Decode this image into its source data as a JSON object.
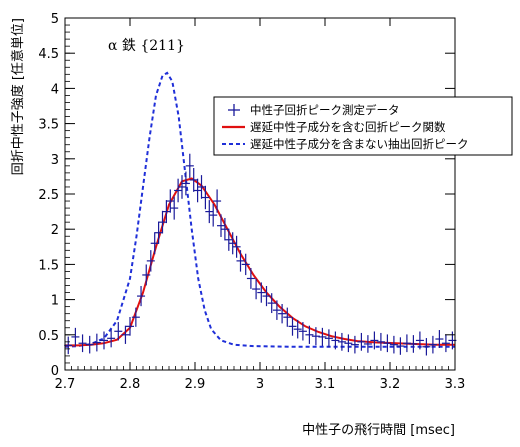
{
  "chart_data": {
    "type": "scatter",
    "annotation": "α 鉄 {211}",
    "xlabel": "中性子の飛行時間 [msec]",
    "ylabel": "回折中性子強度 [任意単位]",
    "xlim": [
      2.7,
      3.3
    ],
    "ylim": [
      0,
      5
    ],
    "x_ticks": [
      "2.7",
      "2.8",
      "2.9",
      "3",
      "3.1",
      "3.2",
      "3.3"
    ],
    "y_ticks": [
      "0",
      "0.5",
      "1",
      "1.5",
      "2",
      "2.5",
      "3",
      "3.5",
      "4",
      "4.5",
      "5"
    ],
    "legend_position": "top-right",
    "colors": {
      "data": "#1a1a9a",
      "fit": "#e01010",
      "extracted": "#1f2fd8",
      "axis": "#000000"
    },
    "series": [
      {
        "name": "中性子回折ピーク測定データ",
        "style": "markers-with-error-bars",
        "points": [
          [
            2.705,
            0.35
          ],
          [
            2.716,
            0.47
          ],
          [
            2.727,
            0.38
          ],
          [
            2.738,
            0.36
          ],
          [
            2.749,
            0.39
          ],
          [
            2.76,
            0.42
          ],
          [
            2.771,
            0.45
          ],
          [
            2.782,
            0.55
          ],
          [
            2.793,
            0.5
          ],
          [
            2.8,
            0.62
          ],
          [
            2.809,
            0.75
          ],
          [
            2.817,
            1.05
          ],
          [
            2.825,
            1.35
          ],
          [
            2.832,
            1.55
          ],
          [
            2.838,
            1.8
          ],
          [
            2.844,
            1.95
          ],
          [
            2.85,
            2.1
          ],
          [
            2.856,
            2.25
          ],
          [
            2.862,
            2.4
          ],
          [
            2.868,
            2.3
          ],
          [
            2.874,
            2.55
          ],
          [
            2.88,
            2.6
          ],
          [
            2.886,
            2.65
          ],
          [
            2.892,
            2.9
          ],
          [
            2.898,
            2.7
          ],
          [
            2.904,
            2.55
          ],
          [
            2.91,
            2.6
          ],
          [
            2.916,
            2.45
          ],
          [
            2.922,
            2.25
          ],
          [
            2.928,
            2.2
          ],
          [
            2.934,
            2.4
          ],
          [
            2.94,
            2.05
          ],
          [
            2.946,
            2.0
          ],
          [
            2.952,
            1.85
          ],
          [
            2.958,
            1.8
          ],
          [
            2.964,
            1.75
          ],
          [
            2.97,
            1.55
          ],
          [
            2.978,
            1.5
          ],
          [
            2.986,
            1.3
          ],
          [
            2.994,
            1.15
          ],
          [
            3.002,
            1.1
          ],
          [
            3.01,
            1.05
          ],
          [
            3.018,
            0.95
          ],
          [
            3.026,
            0.85
          ],
          [
            3.034,
            0.8
          ],
          [
            3.042,
            0.75
          ],
          [
            3.05,
            0.62
          ],
          [
            3.058,
            0.58
          ],
          [
            3.066,
            0.55
          ],
          [
            3.076,
            0.5
          ],
          [
            3.086,
            0.48
          ],
          [
            3.096,
            0.47
          ],
          [
            3.106,
            0.45
          ],
          [
            3.116,
            0.42
          ],
          [
            3.126,
            0.4
          ],
          [
            3.136,
            0.38
          ],
          [
            3.146,
            0.36
          ],
          [
            3.156,
            0.4
          ],
          [
            3.166,
            0.37
          ],
          [
            3.176,
            0.42
          ],
          [
            3.186,
            0.4
          ],
          [
            3.196,
            0.38
          ],
          [
            3.206,
            0.36
          ],
          [
            3.216,
            0.34
          ],
          [
            3.226,
            0.38
          ],
          [
            3.236,
            0.37
          ],
          [
            3.246,
            0.42
          ],
          [
            3.256,
            0.33
          ],
          [
            3.266,
            0.36
          ],
          [
            3.276,
            0.44
          ],
          [
            3.286,
            0.38
          ],
          [
            3.296,
            0.42
          ]
        ]
      },
      {
        "name": "遅延中性子成分を含む回折ピーク関数",
        "style": "solid",
        "points": [
          [
            2.7,
            0.35
          ],
          [
            2.72,
            0.35
          ],
          [
            2.74,
            0.36
          ],
          [
            2.76,
            0.38
          ],
          [
            2.78,
            0.43
          ],
          [
            2.8,
            0.6
          ],
          [
            2.82,
            1.1
          ],
          [
            2.84,
            1.75
          ],
          [
            2.86,
            2.35
          ],
          [
            2.88,
            2.68
          ],
          [
            2.895,
            2.72
          ],
          [
            2.91,
            2.62
          ],
          [
            2.93,
            2.35
          ],
          [
            2.95,
            2.0
          ],
          [
            2.97,
            1.65
          ],
          [
            2.99,
            1.35
          ],
          [
            3.01,
            1.1
          ],
          [
            3.03,
            0.9
          ],
          [
            3.05,
            0.74
          ],
          [
            3.07,
            0.62
          ],
          [
            3.09,
            0.54
          ],
          [
            3.11,
            0.48
          ],
          [
            3.13,
            0.44
          ],
          [
            3.15,
            0.41
          ],
          [
            3.18,
            0.39
          ],
          [
            3.21,
            0.38
          ],
          [
            3.24,
            0.37
          ],
          [
            3.27,
            0.36
          ],
          [
            3.3,
            0.36
          ]
        ]
      },
      {
        "name": "遅延中性子成分を含まない抽出回折ピーク",
        "style": "dashed",
        "points": [
          [
            2.7,
            0.33
          ],
          [
            2.72,
            0.34
          ],
          [
            2.74,
            0.37
          ],
          [
            2.76,
            0.45
          ],
          [
            2.78,
            0.7
          ],
          [
            2.8,
            1.3
          ],
          [
            2.81,
            1.9
          ],
          [
            2.82,
            2.6
          ],
          [
            2.83,
            3.3
          ],
          [
            2.84,
            3.9
          ],
          [
            2.85,
            4.18
          ],
          [
            2.857,
            4.22
          ],
          [
            2.865,
            4.1
          ],
          [
            2.875,
            3.6
          ],
          [
            2.885,
            2.8
          ],
          [
            2.895,
            2.0
          ],
          [
            2.905,
            1.3
          ],
          [
            2.915,
            0.85
          ],
          [
            2.925,
            0.58
          ],
          [
            2.94,
            0.42
          ],
          [
            2.96,
            0.36
          ],
          [
            2.99,
            0.34
          ],
          [
            3.05,
            0.33
          ],
          [
            3.3,
            0.33
          ]
        ]
      }
    ]
  }
}
